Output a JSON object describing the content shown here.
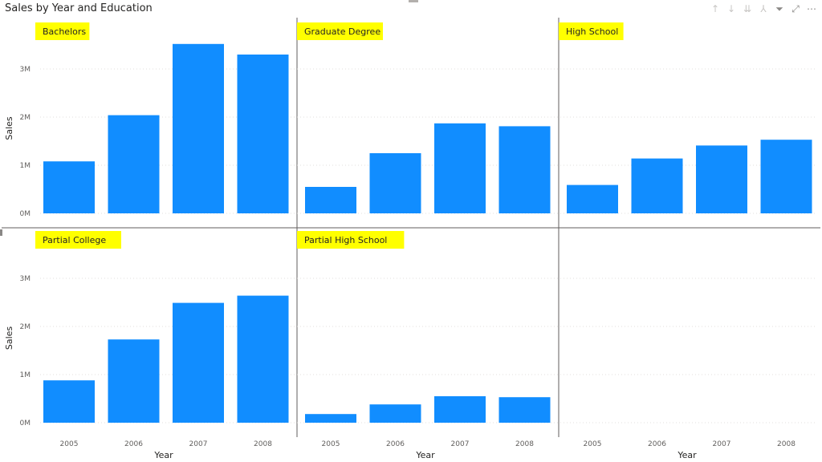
{
  "title": "Sales by Year and Education",
  "toolbar": [
    {
      "name": "drill-up-icon",
      "glyph": "↑"
    },
    {
      "name": "drill-down-icon",
      "glyph": "↓"
    },
    {
      "name": "expand-all-icon",
      "glyph": "⇊"
    },
    {
      "name": "hierarchy-icon",
      "glyph": "⅄"
    },
    {
      "name": "filter-icon",
      "glyph": "⏷"
    },
    {
      "name": "focus-mode-icon",
      "glyph": "⤢"
    },
    {
      "name": "more-options-icon",
      "glyph": "⋯"
    }
  ],
  "chart_data": {
    "type": "bar",
    "title": "Sales by Year and Education",
    "xlabel": "Year",
    "ylabel": "Sales",
    "categories": [
      "2005",
      "2006",
      "2007",
      "2008"
    ],
    "y_ticks": [
      0,
      1000000,
      2000000,
      3000000
    ],
    "y_tick_labels": [
      "0M",
      "1M",
      "2M",
      "3M"
    ],
    "ylim": [
      0,
      3600000
    ],
    "grid": true,
    "bar_color": "#118DFF",
    "facet_label_bg": "#FFFF00",
    "facets": [
      {
        "name": "Bachelors",
        "values": [
          1080000,
          2040000,
          3520000,
          3300000
        ]
      },
      {
        "name": "Graduate Degree",
        "values": [
          550000,
          1250000,
          1870000,
          1810000
        ]
      },
      {
        "name": "High School",
        "values": [
          590000,
          1140000,
          1410000,
          1530000
        ]
      },
      {
        "name": "Partial College",
        "values": [
          880000,
          1730000,
          2490000,
          2640000
        ]
      },
      {
        "name": "Partial High School",
        "values": [
          180000,
          380000,
          550000,
          530000
        ]
      }
    ]
  }
}
